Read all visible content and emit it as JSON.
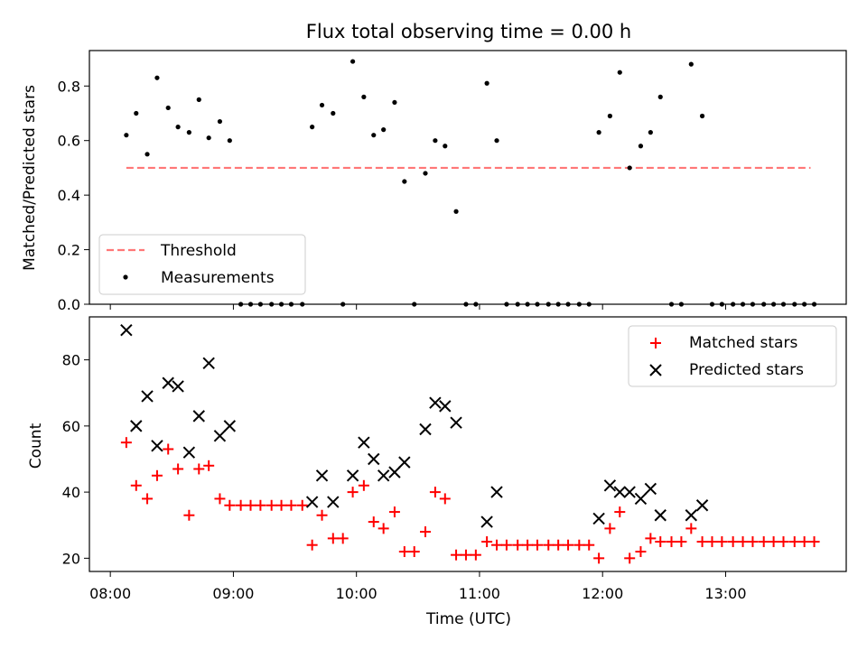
{
  "chart_data": [
    {
      "type": "scatter",
      "title": "Flux total observing time = 0.00 h",
      "xlabel": "",
      "ylabel": "Matched/Predicted stars",
      "ylim": [
        0,
        0.93
      ],
      "yticks": [
        0.0,
        0.2,
        0.4,
        0.6,
        0.8
      ],
      "ytick_labels": [
        "0.0",
        "0.2",
        "0.4",
        "0.6",
        "0.8"
      ],
      "xlim_hours": [
        7.83,
        13.98
      ],
      "threshold": {
        "name": "Threshold",
        "value": 0.5,
        "x_range": [
          8.13,
          13.69
        ],
        "color": "#ff7777"
      },
      "legend": {
        "location": "lower-left",
        "entries": [
          "Threshold",
          "Measurements"
        ]
      },
      "series": [
        {
          "name": "Measurements",
          "color": "#000000",
          "x": [
            8.13,
            8.21,
            8.3,
            8.38,
            8.47,
            8.55,
            8.64,
            8.72,
            8.8,
            8.89,
            8.97,
            9.06,
            9.14,
            9.22,
            9.31,
            9.39,
            9.47,
            9.56,
            9.64,
            9.72,
            9.81,
            9.89,
            9.97,
            10.06,
            10.14,
            10.22,
            10.31,
            10.39,
            10.47,
            10.56,
            10.64,
            10.72,
            10.81,
            10.89,
            10.97,
            11.06,
            11.14,
            11.22,
            11.31,
            11.39,
            11.47,
            11.56,
            11.64,
            11.72,
            11.81,
            11.89,
            11.97,
            12.06,
            12.14,
            12.22,
            12.31,
            12.39,
            12.47,
            12.56,
            12.64,
            12.72,
            12.81,
            12.89,
            12.97,
            13.06,
            13.14,
            13.22,
            13.31,
            13.39,
            13.47,
            13.56,
            13.64,
            13.72
          ],
          "y": [
            0.62,
            0.7,
            0.55,
            0.83,
            0.72,
            0.65,
            0.63,
            0.75,
            0.61,
            0.67,
            0.6,
            0.0,
            0.0,
            0.0,
            0.0,
            0.0,
            0.0,
            0.0,
            0.65,
            0.73,
            0.7,
            0.0,
            0.89,
            0.76,
            0.62,
            0.64,
            0.74,
            0.45,
            0.0,
            0.48,
            0.6,
            0.58,
            0.34,
            0.0,
            0.0,
            0.81,
            0.6,
            0.0,
            0.0,
            0.0,
            0.0,
            0.0,
            0.0,
            0.0,
            0.0,
            0.0,
            0.63,
            0.69,
            0.85,
            0.5,
            0.58,
            0.63,
            0.76,
            0.0,
            0.0,
            0.88,
            0.69,
            0.0,
            0.0,
            0.0,
            0.0,
            0.0,
            0.0,
            0.0,
            0.0,
            0.0,
            0.0,
            0.0
          ]
        }
      ]
    },
    {
      "type": "scatter",
      "title": "",
      "xlabel": "Time (UTC)",
      "ylabel": "Count",
      "ylim": [
        16,
        93
      ],
      "yticks": [
        20,
        40,
        60,
        80
      ],
      "ytick_labels": [
        "20",
        "40",
        "60",
        "80"
      ],
      "xlim_hours": [
        7.83,
        13.98
      ],
      "xticks_hours": [
        8,
        9,
        10,
        11,
        12,
        13
      ],
      "xtick_labels": [
        "08:00",
        "09:00",
        "10:00",
        "11:00",
        "12:00",
        "13:00"
      ],
      "legend": {
        "location": "upper-right",
        "entries": [
          "Matched stars",
          "Predicted stars"
        ]
      },
      "series": [
        {
          "name": "Matched stars",
          "marker": "plus",
          "color": "#ff0000",
          "x": [
            8.13,
            8.21,
            8.3,
            8.38,
            8.47,
            8.55,
            8.64,
            8.72,
            8.8,
            8.89,
            8.97,
            9.06,
            9.14,
            9.22,
            9.31,
            9.39,
            9.47,
            9.56,
            9.64,
            9.72,
            9.81,
            9.89,
            9.97,
            10.06,
            10.14,
            10.22,
            10.31,
            10.39,
            10.47,
            10.56,
            10.64,
            10.72,
            10.81,
            10.89,
            10.97,
            11.06,
            11.14,
            11.22,
            11.31,
            11.39,
            11.47,
            11.56,
            11.64,
            11.72,
            11.81,
            11.89,
            11.97,
            12.06,
            12.14,
            12.22,
            12.31,
            12.39,
            12.47,
            12.56,
            12.64,
            12.72,
            12.81,
            12.89,
            12.97,
            13.06,
            13.14,
            13.22,
            13.31,
            13.39,
            13.47,
            13.56,
            13.64,
            13.72
          ],
          "y": [
            55,
            42,
            38,
            45,
            53,
            47,
            33,
            47,
            48,
            38,
            36,
            36,
            36,
            36,
            36,
            36,
            36,
            36,
            24,
            33,
            26,
            26,
            40,
            42,
            31,
            29,
            34,
            22,
            22,
            28,
            40,
            38,
            21,
            21,
            21,
            25,
            24,
            24,
            24,
            24,
            24,
            24,
            24,
            24,
            24,
            24,
            20,
            29,
            34,
            20,
            22,
            26,
            25,
            25,
            25,
            29,
            25,
            25,
            25,
            25,
            25,
            25,
            25,
            25,
            25,
            25,
            25,
            25
          ]
        },
        {
          "name": "Predicted stars",
          "marker": "x",
          "color": "#000000",
          "x": [
            8.13,
            8.21,
            8.3,
            8.38,
            8.47,
            8.55,
            8.64,
            8.72,
            8.8,
            8.89,
            8.97,
            9.64,
            9.72,
            9.81,
            9.97,
            10.06,
            10.14,
            10.22,
            10.31,
            10.39,
            10.56,
            10.64,
            10.72,
            10.81,
            11.06,
            11.14,
            11.97,
            12.06,
            12.14,
            12.22,
            12.31,
            12.39,
            12.47,
            12.72,
            12.81
          ],
          "y": [
            89,
            60,
            69,
            54,
            73,
            72,
            52,
            63,
            79,
            57,
            60,
            37,
            45,
            37,
            45,
            55,
            50,
            45,
            46,
            49,
            59,
            67,
            66,
            61,
            31,
            40,
            32,
            42,
            40,
            40,
            38,
            41,
            33,
            33,
            36
          ]
        }
      ]
    }
  ]
}
